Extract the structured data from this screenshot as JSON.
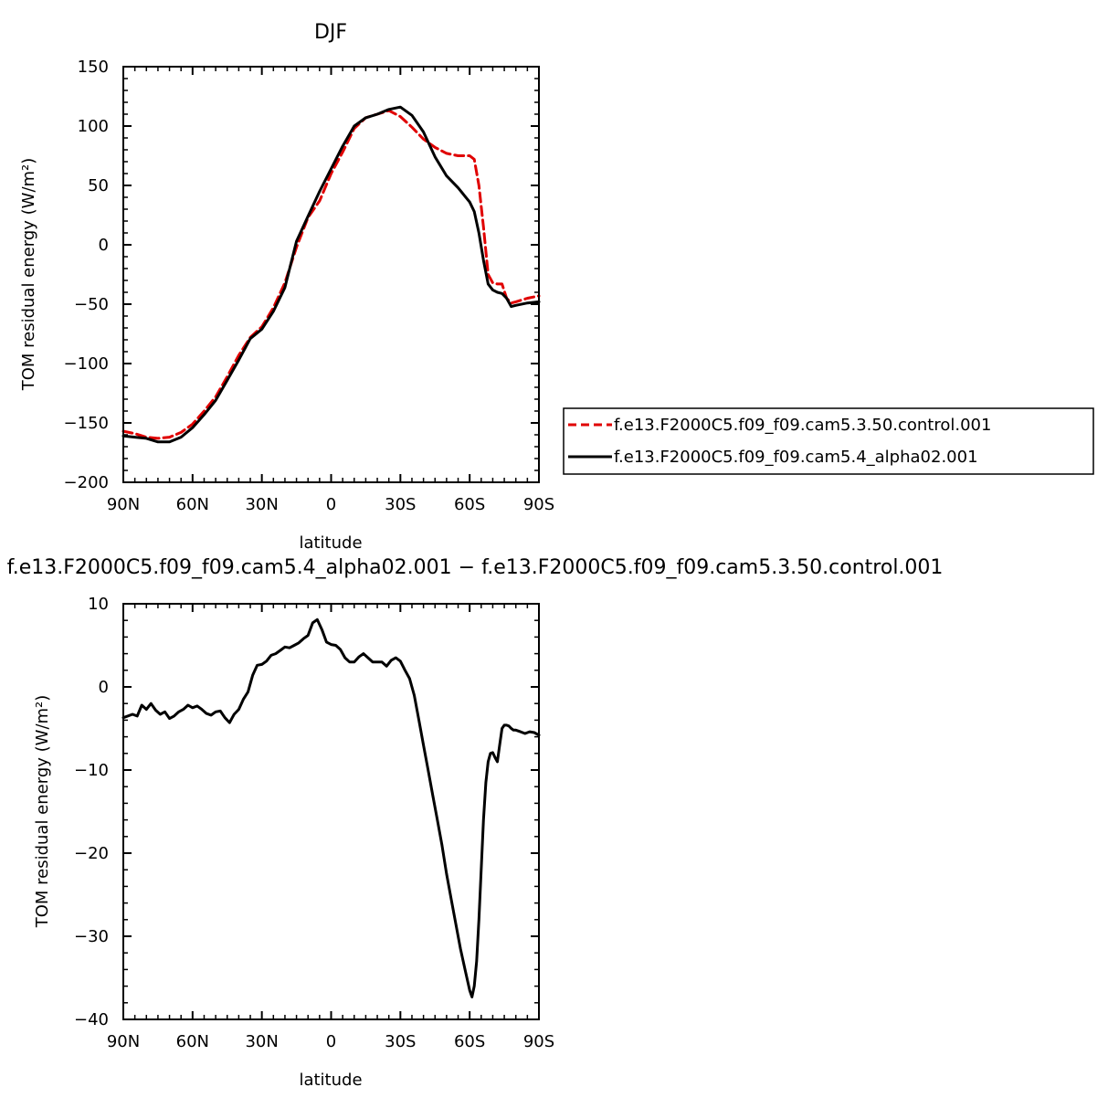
{
  "chart_data": [
    {
      "type": "line",
      "title": "DJF",
      "xlabel": "latitude",
      "ylabel": "TOM residual energy (W/m²)",
      "xlim": [
        90,
        -90
      ],
      "ylim": [
        -200,
        150
      ],
      "x_ticks": [
        90,
        60,
        30,
        0,
        -30,
        -60,
        -90
      ],
      "x_tick_labels": [
        "90N",
        "60N",
        "30N",
        "0",
        "30S",
        "60S",
        "90S"
      ],
      "y_ticks": [
        -200,
        -150,
        -100,
        -50,
        0,
        50,
        100,
        150
      ],
      "y_tick_labels": [
        "−200",
        "−150",
        "−100",
        "−50",
        "0",
        "50",
        "100",
        "150"
      ],
      "legend": "right",
      "series": [
        {
          "name": "f.e13.F2000C5.f09_f09.cam5.3.50.control.001",
          "color": "#e00000",
          "dash": "dashed",
          "x": [
            90,
            85,
            80,
            75,
            70,
            65,
            60,
            55,
            50,
            45,
            40,
            35,
            30,
            25,
            20,
            15,
            10,
            5,
            0,
            -5,
            -10,
            -15,
            -20,
            -25,
            -30,
            -35,
            -40,
            -45,
            -50,
            -55,
            -60,
            -62,
            -64,
            -66,
            -68,
            -70,
            -72,
            -74,
            -76,
            -78,
            -80,
            -85,
            -90
          ],
          "y": [
            -157,
            -159,
            -162,
            -163,
            -162,
            -158,
            -151,
            -140,
            -128,
            -111,
            -93,
            -78,
            -69,
            -53,
            -32,
            -2,
            23,
            37,
            60,
            78,
            98,
            107,
            110,
            113,
            108,
            99,
            89,
            82,
            77,
            75,
            75,
            72,
            50,
            15,
            -25,
            -32,
            -33,
            -33,
            -45,
            -49,
            -48,
            -45,
            -43
          ]
        },
        {
          "name": "f.e13.F2000C5.f09_f09.cam5.4_alpha02.001",
          "color": "#000000",
          "dash": "solid",
          "x": [
            90,
            85,
            80,
            75,
            70,
            65,
            60,
            55,
            50,
            45,
            40,
            35,
            30,
            25,
            20,
            15,
            10,
            5,
            0,
            -5,
            -10,
            -15,
            -20,
            -25,
            -30,
            -35,
            -40,
            -45,
            -50,
            -55,
            -60,
            -62,
            -64,
            -66,
            -68,
            -70,
            -72,
            -74,
            -76,
            -78,
            -80,
            -85,
            -90
          ],
          "y": [
            -161,
            -162,
            -163,
            -166,
            -166,
            -162,
            -154,
            -143,
            -131,
            -114,
            -97,
            -79,
            -71,
            -56,
            -36,
            3,
            24,
            45,
            64,
            83,
            100,
            107,
            110,
            114,
            116,
            109,
            95,
            74,
            58,
            48,
            36,
            28,
            10,
            -13,
            -33,
            -38,
            -40,
            -41,
            -45,
            -52,
            -51,
            -49,
            -48
          ]
        }
      ]
    },
    {
      "type": "line",
      "title": "f.e13.F2000C5.f09_f09.cam5.4_alpha02.001 − f.e13.F2000C5.f09_f09.cam5.3.50.control.001",
      "xlabel": "latitude",
      "ylabel": "TOM residual energy (W/m²)",
      "xlim": [
        90,
        -90
      ],
      "ylim": [
        -40,
        10
      ],
      "x_ticks": [
        90,
        60,
        30,
        0,
        -30,
        -60,
        -90
      ],
      "x_tick_labels": [
        "90N",
        "60N",
        "30N",
        "0",
        "30S",
        "60S",
        "90S"
      ],
      "y_ticks": [
        -40,
        -30,
        -20,
        -10,
        0,
        10
      ],
      "y_tick_labels": [
        "−40",
        "−30",
        "−20",
        "−10",
        "0",
        "10"
      ],
      "series": [
        {
          "color": "#000000",
          "x": [
            90,
            86,
            84,
            82,
            80,
            78,
            76,
            74,
            72,
            70,
            68,
            66,
            64,
            62,
            60,
            58,
            56,
            54,
            52,
            50,
            48,
            46,
            44,
            42,
            40,
            38,
            36,
            34,
            32,
            30,
            28,
            26,
            24,
            22,
            20,
            18,
            16,
            14,
            12,
            10,
            8,
            6,
            4,
            2,
            0,
            -2,
            -4,
            -6,
            -8,
            -10,
            -12,
            -14,
            -16,
            -18,
            -20,
            -22,
            -24,
            -26,
            -28,
            -30,
            -32,
            -34,
            -36,
            -38,
            -40,
            -42,
            -44,
            -46,
            -48,
            -50,
            -52,
            -54,
            -56,
            -58,
            -60,
            -61,
            -62,
            -63,
            -64,
            -65,
            -66,
            -67,
            -68,
            -69,
            -70,
            -71,
            -72,
            -73,
            -74,
            -75,
            -76,
            -77,
            -78,
            -79,
            -80,
            -82,
            -84,
            -86,
            -88,
            -90
          ],
          "y": [
            -3.7,
            -3.3,
            -3.5,
            -2.2,
            -2.7,
            -2.0,
            -2.8,
            -3.3,
            -3.0,
            -3.8,
            -3.5,
            -3.0,
            -2.7,
            -2.2,
            -2.5,
            -2.3,
            -2.7,
            -3.2,
            -3.4,
            -3.0,
            -2.9,
            -3.7,
            -4.3,
            -3.3,
            -2.7,
            -1.5,
            -0.6,
            1.4,
            2.6,
            2.7,
            3.1,
            3.8,
            4.0,
            4.4,
            4.8,
            4.7,
            5.0,
            5.3,
            5.8,
            6.2,
            7.7,
            8.1,
            6.9,
            5.4,
            5.1,
            5.0,
            4.5,
            3.5,
            3.0,
            3.0,
            3.6,
            4.0,
            3.5,
            3.0,
            3.0,
            3.0,
            2.5,
            3.2,
            3.5,
            3.1,
            2.0,
            1.0,
            -1.0,
            -4.0,
            -7.0,
            -10.0,
            -13.0,
            -16.0,
            -19.0,
            -22.5,
            -25.5,
            -28.5,
            -31.5,
            -34.0,
            -36.5,
            -37.3,
            -36.0,
            -33.0,
            -28.0,
            -22.0,
            -16.0,
            -11.5,
            -9.0,
            -8.0,
            -7.9,
            -8.5,
            -9.0,
            -7.0,
            -5.0,
            -4.6,
            -4.6,
            -4.7,
            -5.0,
            -5.2,
            -5.2,
            -5.4,
            -5.6,
            -5.4,
            -5.5,
            -5.8
          ]
        }
      ]
    }
  ]
}
